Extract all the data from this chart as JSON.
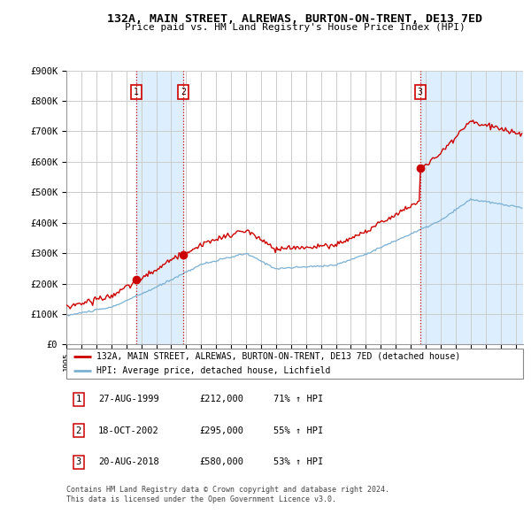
{
  "title": "132A, MAIN STREET, ALREWAS, BURTON-ON-TRENT, DE13 7ED",
  "subtitle": "Price paid vs. HM Land Registry's House Price Index (HPI)",
  "ylim": [
    0,
    900000
  ],
  "yticks": [
    0,
    100000,
    200000,
    300000,
    400000,
    500000,
    600000,
    700000,
    800000,
    900000
  ],
  "ytick_labels": [
    "£0",
    "£100K",
    "£200K",
    "£300K",
    "£400K",
    "£500K",
    "£600K",
    "£700K",
    "£800K",
    "£900K"
  ],
  "xlim_start": 1995.0,
  "xlim_end": 2025.5,
  "sale_dates": [
    1999.65,
    2002.8,
    2018.63
  ],
  "sale_prices": [
    212000,
    295000,
    580000
  ],
  "sale_labels": [
    "1",
    "2",
    "3"
  ],
  "red_line_color": "#cc0000",
  "blue_line_color": "#7ab0d4",
  "shade_color": "#ddeeff",
  "marker_fill_color": "#cc0000",
  "marker_box_color": "#cc0000",
  "grid_color": "#cccccc",
  "background_color": "#ffffff",
  "legend_line1": "132A, MAIN STREET, ALREWAS, BURTON-ON-TRENT, DE13 7ED (detached house)",
  "legend_line2": "HPI: Average price, detached house, Lichfield",
  "table_rows": [
    [
      "1",
      "27-AUG-1999",
      "£212,000",
      "71% ↑ HPI"
    ],
    [
      "2",
      "18-OCT-2002",
      "£295,000",
      "55% ↑ HPI"
    ],
    [
      "3",
      "20-AUG-2018",
      "£580,000",
      "53% ↑ HPI"
    ]
  ],
  "footnote1": "Contains HM Land Registry data © Crown copyright and database right 2024.",
  "footnote2": "This data is licensed under the Open Government Licence v3.0."
}
